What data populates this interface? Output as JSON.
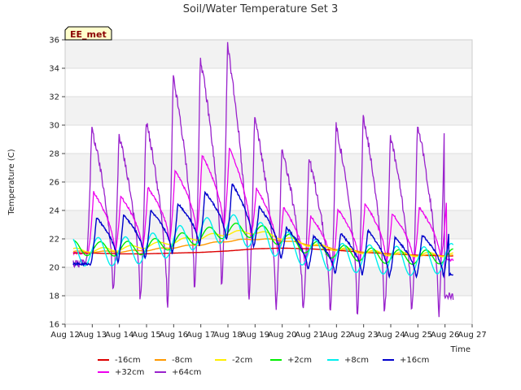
{
  "chart_data": {
    "type": "line",
    "title": "Soil/Water Temperature Set 3",
    "xlabel": "Time",
    "ylabel": "Temperature (C)",
    "site_badge": "EE_met",
    "xlim": [
      12,
      27
    ],
    "ylim": [
      16,
      36
    ],
    "x_ticks": [
      12,
      13,
      14,
      15,
      16,
      17,
      18,
      19,
      20,
      21,
      22,
      23,
      24,
      25,
      26,
      27
    ],
    "x_tick_labels": [
      "Aug 12",
      "Aug 13",
      "Aug 14",
      "Aug 15",
      "Aug 16",
      "Aug 17",
      "Aug 18",
      "Aug 19",
      "Aug 20",
      "Aug 21",
      "Aug 22",
      "Aug 23",
      "Aug 24",
      "Aug 25",
      "Aug 26",
      "Aug 27"
    ],
    "y_ticks": [
      16,
      18,
      20,
      22,
      24,
      26,
      28,
      30,
      32,
      34,
      36
    ],
    "y_tick_labels": [
      "16",
      "18",
      "20",
      "22",
      "24",
      "26",
      "28",
      "30",
      "32",
      "34",
      "36"
    ],
    "grid": true,
    "legend_position": "bottom",
    "daily_peak_x": [
      13.1,
      14.1,
      15.1,
      16.1,
      17.1,
      18.1,
      19.1,
      20.1,
      21.1,
      22.1,
      23.1,
      24.1,
      25.1,
      26.1
    ],
    "series": [
      {
        "name": "-16cm",
        "color": "#dd0000",
        "amplitude": 0,
        "lag": 0,
        "x": [
          12.3,
          13.0,
          14.0,
          15.0,
          16.0,
          17.0,
          18.0,
          19.0,
          20.0,
          21.0,
          22.0,
          23.0,
          24.0,
          25.0,
          26.0,
          26.3
        ],
        "mean": [
          21.0,
          21.0,
          20.95,
          20.95,
          21.0,
          21.05,
          21.15,
          21.3,
          21.35,
          21.3,
          21.2,
          21.05,
          20.95,
          20.85,
          20.8,
          20.8
        ]
      },
      {
        "name": "-8cm",
        "color": "#ff9900",
        "amplitude": 0.05,
        "lag": 0.4,
        "x": [
          12.3,
          13.0,
          14.0,
          15.0,
          16.0,
          17.0,
          18.0,
          19.0,
          20.0,
          21.0,
          22.0,
          23.0,
          24.0,
          25.0,
          26.0,
          26.3
        ],
        "mean": [
          21.1,
          21.1,
          21.1,
          21.2,
          21.4,
          21.6,
          21.85,
          22.0,
          21.9,
          21.6,
          21.3,
          21.1,
          20.95,
          20.85,
          20.85,
          20.85
        ]
      },
      {
        "name": "-2cm",
        "color": "#ffee00",
        "amplitude": 0.15,
        "lag": 0.3,
        "x": [
          12.3,
          13.0,
          14.0,
          15.0,
          16.0,
          17.0,
          18.0,
          19.0,
          20.0,
          21.0,
          22.0,
          23.0,
          24.0,
          25.0,
          26.0,
          26.3
        ],
        "mean": [
          21.2,
          21.2,
          21.3,
          21.5,
          21.8,
          22.1,
          22.4,
          22.5,
          22.1,
          21.6,
          21.3,
          21.1,
          20.95,
          20.9,
          20.9,
          20.9
        ]
      },
      {
        "name": "+2cm",
        "color": "#00ee00",
        "amplitude": 0.5,
        "lag": 0.2,
        "x": [
          12.3,
          13.0,
          14.0,
          15.0,
          16.0,
          17.0,
          18.0,
          19.0,
          20.0,
          21.0,
          22.0,
          23.0,
          24.0,
          25.0,
          26.0,
          26.3
        ],
        "mean": [
          21.4,
          21.3,
          21.3,
          21.4,
          21.8,
          22.2,
          22.6,
          22.6,
          22.0,
          21.4,
          21.1,
          20.9,
          20.75,
          20.7,
          20.75,
          20.8
        ]
      },
      {
        "name": "+8cm",
        "color": "#00eeee",
        "amplitude": 1.0,
        "lag": 0.12,
        "x": [
          12.3,
          13.0,
          14.0,
          15.0,
          16.0,
          17.0,
          18.0,
          19.0,
          20.0,
          21.0,
          22.0,
          23.0,
          24.0,
          25.0,
          26.0,
          26.3
        ],
        "mean": [
          21.1,
          21.1,
          21.1,
          21.3,
          21.8,
          22.4,
          22.8,
          22.3,
          21.6,
          21.0,
          20.7,
          20.6,
          20.5,
          20.4,
          20.6,
          20.7
        ]
      },
      {
        "name": "+16cm",
        "color": "#0000cc",
        "amplitude": 1.6,
        "lag": 0.05,
        "x": [
          12.3,
          13.0,
          14.0,
          15.0,
          16.0,
          17.0,
          18.0,
          19.0,
          20.0,
          21.0,
          22.0,
          23.0,
          24.0,
          25.0,
          26.0,
          26.3
        ],
        "mean": [
          21.6,
          21.8,
          22.0,
          22.3,
          22.7,
          23.3,
          23.6,
          22.7,
          21.9,
          21.2,
          21.1,
          21.0,
          20.9,
          20.9,
          21.0,
          21.2
        ],
        "peak_y": [
          23.5,
          23.7,
          24.0,
          24.5,
          25.3,
          25.9,
          24.3,
          22.8,
          22.2,
          22.4,
          22.6,
          22.1,
          22.3,
          22.7
        ]
      },
      {
        "name": "+32cm",
        "color": "#ee00ee",
        "amplitude": 1.8,
        "lag": -0.05,
        "x": [
          12.3,
          13.0,
          14.0,
          15.0,
          16.0,
          17.0,
          18.0,
          19.0,
          20.0,
          21.0,
          22.0,
          23.0,
          24.0,
          25.0,
          26.0,
          26.3
        ],
        "mean": [
          21.5,
          22.8,
          22.8,
          23.1,
          23.9,
          24.4,
          24.6,
          23.3,
          22.2,
          21.6,
          21.9,
          22.2,
          22.1,
          22.2,
          22.4,
          21.8
        ],
        "peak_y": [
          25.3,
          25.0,
          25.6,
          26.8,
          27.9,
          28.4,
          25.6,
          24.2,
          23.6,
          24.1,
          24.5,
          23.8,
          24.2,
          24.6
        ]
      },
      {
        "name": "+64cm",
        "color": "#9922cc",
        "amplitude": 6.0,
        "lag": -0.12,
        "x": [
          12.3,
          13.0,
          14.0,
          15.0,
          16.0,
          17.0,
          18.0,
          19.0,
          20.0,
          21.0,
          22.0,
          23.0,
          24.0,
          25.0,
          26.0,
          26.3
        ],
        "mean": [
          17.0,
          22.5,
          23.0,
          23.5,
          25.0,
          26.0,
          25.5,
          23.5,
          22.5,
          22.0,
          22.5,
          23.0,
          22.5,
          23.0,
          24.0,
          19.0
        ],
        "peak_y": [
          29.8,
          29.4,
          30.4,
          33.4,
          34.8,
          35.7,
          30.6,
          28.5,
          27.7,
          30.0,
          30.8,
          29.3,
          30.2,
          30.9
        ],
        "trough_y": [
          20.3,
          18.1,
          17.6,
          17.0,
          18.2,
          18.3,
          17.5,
          17.0,
          16.9,
          16.8,
          16.6,
          16.6,
          16.6,
          16.5,
          18.0
        ]
      }
    ]
  }
}
